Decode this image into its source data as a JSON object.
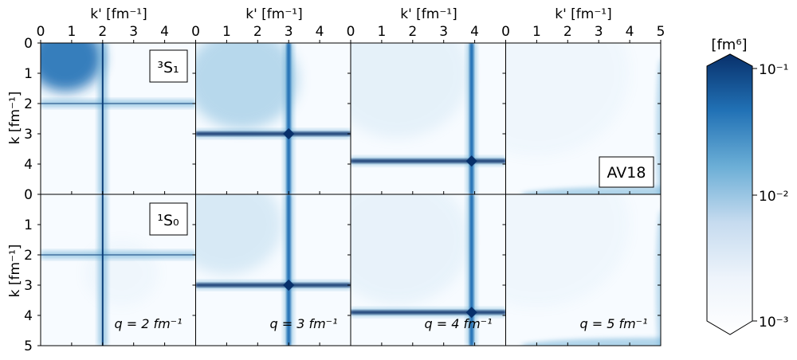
{
  "figure": {
    "top_axis_label": "k' [fm⁻¹]",
    "left_axis_label": "k [fm⁻¹]",
    "top_ticks": [
      "0",
      "1",
      "2",
      "3",
      "4"
    ],
    "top_ticks_last": [
      "0",
      "1",
      "2",
      "3",
      "4",
      "5"
    ],
    "left_ticks_top_row": [
      "0",
      "1",
      "2",
      "3",
      "4"
    ],
    "left_ticks_bottom_row": [
      "0",
      "1",
      "2",
      "3",
      "4",
      "5"
    ],
    "channel_top": "³S₁",
    "channel_bottom": "¹S₀",
    "model_label": "AV18",
    "colors": {
      "background": "#f7fbff",
      "low": "#deebf7",
      "mid": "#6baed6",
      "high": "#2171b5",
      "max": "#08306b",
      "frame": "#000000"
    }
  },
  "colorbar": {
    "unit": "[fm⁶]",
    "scale": "log",
    "range": [
      0.001,
      0.1
    ],
    "tick_labels": [
      "10⁻¹",
      "10⁻²",
      "10⁻³"
    ]
  },
  "chart_data": {
    "type": "heatmap",
    "x_label": "k' [fm⁻¹]",
    "y_label": "k [fm⁻¹]",
    "xlim": [
      0,
      5
    ],
    "ylim": [
      0,
      5
    ],
    "rows": [
      "³S₁",
      "¹S₀"
    ],
    "columns": [
      {
        "q": 2,
        "q_label": "q = 2 fm⁻¹"
      },
      {
        "q": 3,
        "q_label": "q = 3 fm⁻¹"
      },
      {
        "q": 4,
        "q_label": "q = 4 fm⁻¹"
      },
      {
        "q": 5,
        "q_label": "q = 5 fm⁻¹"
      }
    ],
    "panels": [
      {
        "row": 0,
        "col": 0,
        "ridge": 2.0,
        "peak_k": 0.5,
        "peak_kp": 0.8,
        "low_k_level": 0.9
      },
      {
        "row": 0,
        "col": 1,
        "ridge": 3.0,
        "peak_k": 1.2,
        "peak_kp": 1.5,
        "low_k_level": 0.45
      },
      {
        "row": 0,
        "col": 2,
        "ridge": 3.9,
        "peak_k": 1.0,
        "peak_kp": 1.5,
        "low_k_level": 0.12
      },
      {
        "row": 0,
        "col": 3,
        "ridge": 5.0,
        "peak_k": 1.0,
        "peak_kp": 1.0,
        "low_k_level": 0.05
      },
      {
        "row": 1,
        "col": 0,
        "ridge": 2.0,
        "peak_k": 2.6,
        "peak_kp": 2.6,
        "low_k_level": 0.05
      },
      {
        "row": 1,
        "col": 1,
        "ridge": 3.0,
        "peak_k": 1.0,
        "peak_kp": 1.0,
        "low_k_level": 0.22
      },
      {
        "row": 1,
        "col": 2,
        "ridge": 3.9,
        "peak_k": 1.5,
        "peak_kp": 1.5,
        "low_k_level": 0.1
      },
      {
        "row": 1,
        "col": 3,
        "ridge": 5.0,
        "peak_k": 1.0,
        "peak_kp": 1.0,
        "low_k_level": 0.05
      }
    ],
    "colorbar_range": [
      0.001,
      0.1
    ],
    "colorbar_scale": "log",
    "colorbar_unit": "[fm⁶]",
    "annotations": [
      "AV18",
      "³S₁",
      "¹S₀"
    ]
  }
}
